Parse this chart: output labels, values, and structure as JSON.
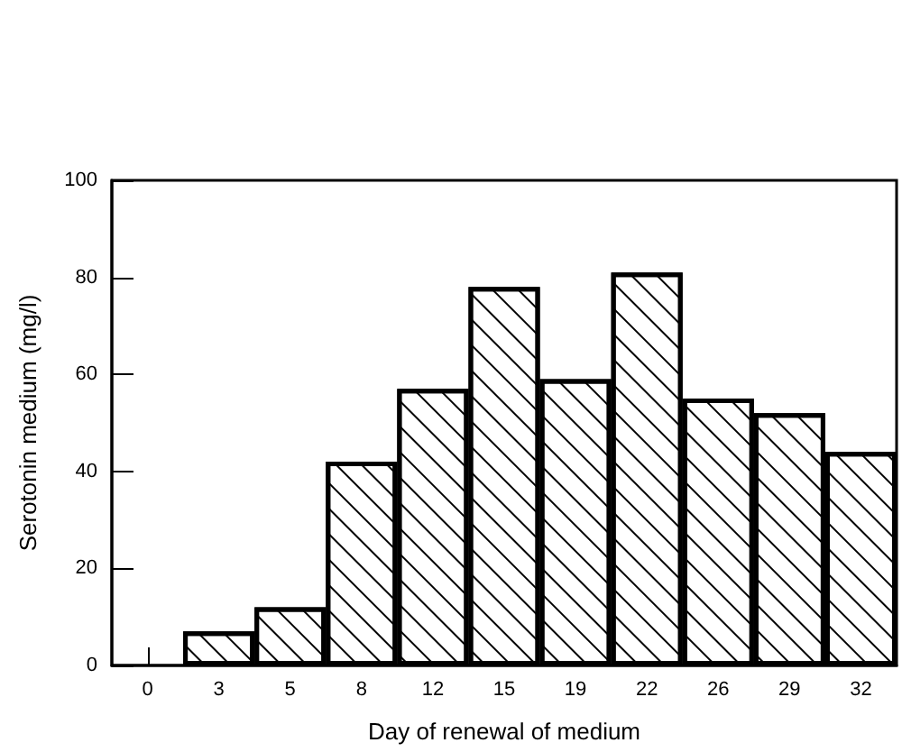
{
  "chart_data": {
    "type": "bar",
    "xlabel": "Day of renewal of medium",
    "ylabel": "Serotonin medium (mg/l)",
    "categories": [
      "0",
      "3",
      "5",
      "8",
      "12",
      "15",
      "19",
      "22",
      "26",
      "29",
      "32"
    ],
    "values": [
      null,
      7,
      12,
      42,
      57,
      78,
      59,
      81,
      55,
      52,
      44
    ],
    "color": "#ffffff",
    "ylim": [
      0,
      100
    ],
    "yticks": [
      0,
      20,
      40,
      60,
      80,
      100
    ],
    "grid": false
  }
}
